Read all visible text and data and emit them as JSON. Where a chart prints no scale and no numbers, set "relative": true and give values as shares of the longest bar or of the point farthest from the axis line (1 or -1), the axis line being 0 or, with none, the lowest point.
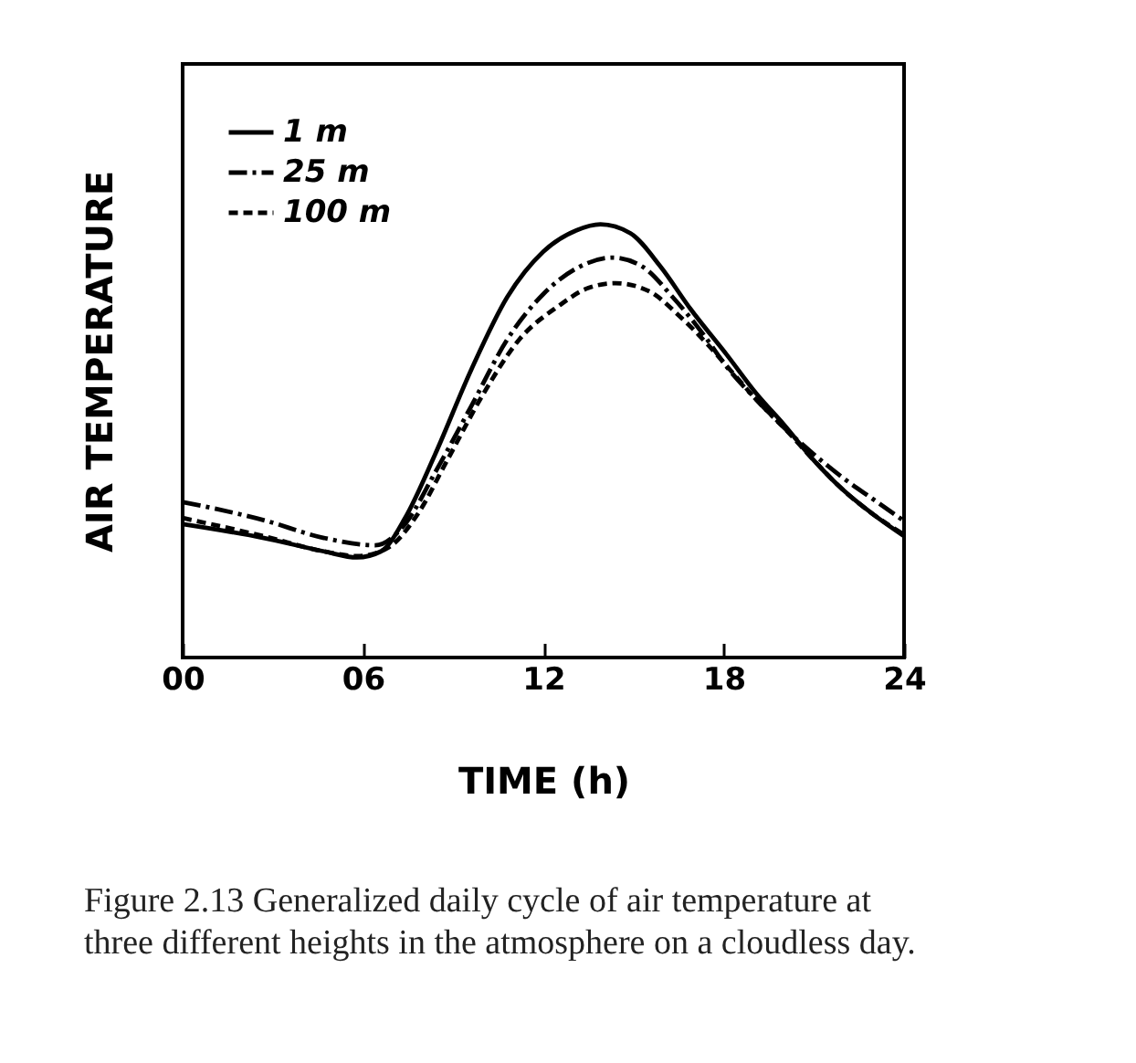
{
  "chart_data": {
    "type": "line",
    "xlabel": "TIME (h)",
    "ylabel": "AIR TEMPERATURE",
    "relative": true,
    "legend": "top left",
    "grid": false,
    "xlim": [
      0,
      24
    ],
    "xticks": [
      {
        "value": 0,
        "label": "00"
      },
      {
        "value": 6,
        "label": "06"
      },
      {
        "value": 12,
        "label": "12"
      },
      {
        "value": 18,
        "label": "18"
      },
      {
        "value": 24,
        "label": "24"
      }
    ],
    "annotations": [
      "Figure 2.13 Generalized daily cycle of air temperature at three different heights in the atmosphere on a cloudless day."
    ],
    "series": [
      {
        "name": "1 m",
        "color": "#000000",
        "line_style": "solid",
        "x": [
          0,
          2.7,
          4.7,
          5.8,
          6.6,
          7.4,
          8.4,
          9.6,
          10.8,
          12.0,
          13.1,
          13.9,
          14.9,
          15.9,
          16.9,
          18.1,
          19.1,
          20.0,
          21.0,
          22.0,
          23.0,
          24.0
        ],
        "values": [
          0.308,
          0.276,
          0.245,
          0.231,
          0.245,
          0.322,
          0.469,
          0.664,
          0.832,
          0.937,
          0.986,
          1.0,
          0.979,
          0.902,
          0.804,
          0.699,
          0.608,
          0.538,
          0.455,
          0.385,
          0.329,
          0.28
        ]
      },
      {
        "name": "25 m",
        "color": "#000000",
        "line_style": "dashdot",
        "x": [
          0,
          2.7,
          4.7,
          6.4,
          7.4,
          8.4,
          9.6,
          10.8,
          12.0,
          13.1,
          14.3,
          15.3,
          16.3,
          17.3,
          18.1,
          19.1,
          20.0,
          21.0,
          22.0,
          23.0,
          24.0
        ],
        "values": [
          0.359,
          0.317,
          0.276,
          0.259,
          0.308,
          0.427,
          0.58,
          0.734,
          0.839,
          0.898,
          0.923,
          0.902,
          0.832,
          0.748,
          0.671,
          0.594,
          0.531,
          0.469,
          0.413,
          0.364,
          0.315
        ]
      },
      {
        "name": "100 m",
        "color": "#000000",
        "line_style": "dashed",
        "x": [
          0,
          2.7,
          4.7,
          5.8,
          6.8,
          7.8,
          8.8,
          10.0,
          11.2,
          12.5,
          13.5,
          14.4,
          15.5,
          16.5,
          17.5,
          18.3,
          19.1,
          20.0,
          21.0,
          22.0,
          23.0,
          24.0
        ],
        "values": [
          0.322,
          0.28,
          0.245,
          0.234,
          0.252,
          0.329,
          0.455,
          0.608,
          0.734,
          0.811,
          0.853,
          0.864,
          0.846,
          0.79,
          0.72,
          0.657,
          0.594,
          0.531,
          0.455,
          0.385,
          0.329,
          0.284
        ]
      }
    ]
  }
}
